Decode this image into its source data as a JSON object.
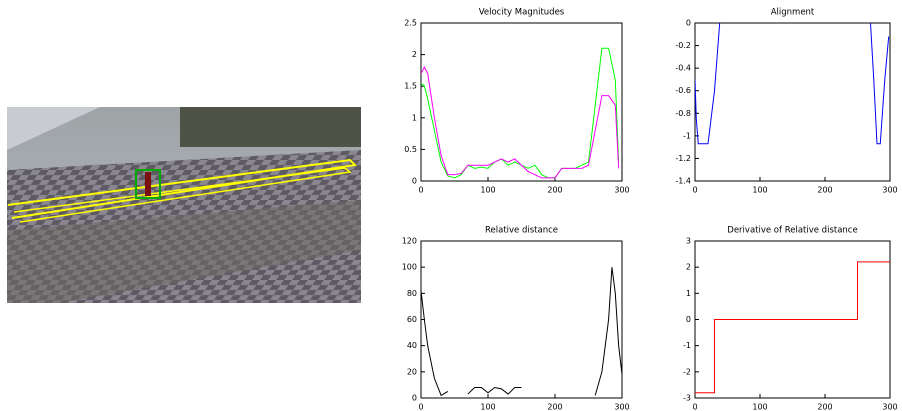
{
  "chart_data": [
    {
      "type": "line",
      "title": "Velocity Magnitudes",
      "x": [
        0,
        5,
        10,
        20,
        30,
        40,
        50,
        60,
        70,
        80,
        90,
        100,
        110,
        120,
        130,
        140,
        150,
        160,
        170,
        180,
        190,
        200,
        210,
        220,
        230,
        240,
        250,
        260,
        270,
        280,
        290,
        295
      ],
      "series": [
        {
          "color": "#00ff00",
          "values": [
            1.55,
            1.5,
            1.3,
            0.8,
            0.3,
            0.08,
            0.05,
            0.1,
            0.25,
            0.2,
            0.22,
            0.2,
            0.3,
            0.35,
            0.25,
            0.3,
            0.25,
            0.2,
            0.25,
            0.1,
            0.05,
            0.05,
            0.2,
            0.2,
            0.2,
            0.25,
            0.3,
            1.2,
            2.1,
            2.1,
            1.6,
            0.3
          ]
        },
        {
          "color": "#ff00ff",
          "values": [
            1.7,
            1.8,
            1.7,
            1.0,
            0.4,
            0.1,
            0.1,
            0.12,
            0.25,
            0.25,
            0.25,
            0.25,
            0.3,
            0.35,
            0.3,
            0.35,
            0.25,
            0.15,
            0.1,
            0.05,
            0.05,
            0.05,
            0.2,
            0.2,
            0.2,
            0.2,
            0.25,
            0.8,
            1.35,
            1.35,
            1.2,
            0.2
          ]
        }
      ],
      "xlim": [
        0,
        300
      ],
      "xticks": [
        0,
        100,
        200,
        300
      ],
      "ylim": [
        0,
        2.5
      ],
      "yticks": [
        0,
        0.5,
        1,
        1.5,
        2,
        2.5
      ]
    },
    {
      "type": "line",
      "title": "Alignment",
      "x": [
        0,
        2,
        5,
        20,
        30,
        38,
        150,
        270,
        275,
        280,
        285,
        292,
        298
      ],
      "series": [
        {
          "color": "#0000ff",
          "values": [
            -0.5,
            -0.85,
            -1.07,
            -1.07,
            -0.6,
            0,
            null,
            0,
            -0.5,
            -1.07,
            -1.07,
            -0.5,
            -0.12
          ]
        }
      ],
      "xlim": [
        0,
        300
      ],
      "xticks": [
        0,
        100,
        200,
        300
      ],
      "ylim": [
        -1.4,
        0
      ],
      "yticks": [
        -1.4,
        -1.2,
        -1,
        -0.8,
        -0.6,
        -0.4,
        -0.2,
        0
      ]
    },
    {
      "type": "line",
      "title": "Relative distance",
      "x": [
        0,
        5,
        10,
        20,
        30,
        40,
        50,
        60,
        70,
        80,
        90,
        100,
        110,
        120,
        130,
        140,
        150,
        160,
        170,
        180,
        190,
        200,
        260,
        270,
        280,
        285,
        290,
        295,
        300
      ],
      "series": [
        {
          "color": "#000000",
          "values": [
            82,
            60,
            40,
            15,
            2,
            5,
            null,
            null,
            3,
            8,
            8,
            4,
            8,
            7,
            3,
            8,
            8,
            null,
            null,
            3,
            null,
            null,
            2,
            20,
            60,
            100,
            80,
            40,
            18
          ]
        }
      ],
      "xlim": [
        0,
        300
      ],
      "xticks": [
        0,
        100,
        200,
        300
      ],
      "ylim": [
        0,
        120
      ],
      "yticks": [
        0,
        20,
        40,
        60,
        80,
        100,
        120
      ]
    },
    {
      "type": "line",
      "title": "Derivative of Relative distance",
      "x": [
        0,
        30,
        30,
        250,
        250,
        300
      ],
      "series": [
        {
          "color": "#ff0000",
          "values": [
            -2.8,
            -2.8,
            0,
            0,
            2.2,
            2.2
          ]
        }
      ],
      "xlim": [
        0,
        300
      ],
      "xticks": [
        0,
        100,
        200,
        300
      ],
      "ylim": [
        -3,
        3
      ],
      "yticks": [
        -3,
        -2,
        -1,
        0,
        1,
        2,
        3
      ]
    }
  ]
}
